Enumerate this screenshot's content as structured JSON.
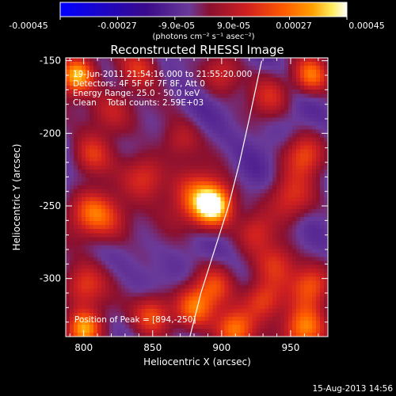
{
  "colorbar": {
    "ticks": [
      "-0.00045",
      "-0.00027",
      "-9.0e-05",
      "9.0e-05",
      "0.00027",
      "0.00045"
    ],
    "tick_values": [
      -0.00045,
      -0.00027,
      -9e-05,
      9e-05,
      0.00027,
      0.00045
    ],
    "range": [
      -0.00045,
      0.00045
    ],
    "unit_label": "(photons cm⁻² s⁻¹ asec⁻²)",
    "colors": [
      "#0000ff",
      "#3a0a8a",
      "#6a3a9a",
      "#8a1030",
      "#d02020",
      "#ff5a00",
      "#ffa000",
      "#ffee60",
      "#ffffff"
    ]
  },
  "chart_data": {
    "type": "heatmap",
    "title": "Reconstructed RHESSI Image",
    "xlabel": "Heliocentric X (arcsec)",
    "ylabel": "Heliocentric Y (arcsec)",
    "xlim": [
      787,
      977
    ],
    "ylim": [
      -340,
      -148
    ],
    "xticks": [
      800,
      850,
      900,
      950
    ],
    "yticks": [
      -150,
      -200,
      -250,
      -300
    ],
    "xtick_labels": [
      "800",
      "850",
      "900",
      "950"
    ],
    "ytick_labels": [
      "-150",
      "-200",
      "-250",
      "-300"
    ],
    "annotations": [
      "19-Jun-2011 21:54:16.000 to 21:55:20.000",
      "Detectors: 4F 5F 6F 7F 8F, Att 0",
      "Energy Range: 25.0 - 50.0 keV",
      "Clean    Total counts: 2.59E+03"
    ],
    "peak_label": "Position of Peak = [894,-250]",
    "peak": {
      "x": 894,
      "y": -250
    },
    "limb_curve": [
      [
        877,
        -340
      ],
      [
        885,
        -310
      ],
      [
        895,
        -280
      ],
      [
        905,
        -250
      ],
      [
        913,
        -220
      ],
      [
        920,
        -190
      ],
      [
        929,
        -150
      ]
    ],
    "sources": [
      {
        "x": 894,
        "y": -250,
        "amp": 0.00048,
        "sigma": 10
      },
      {
        "x": 880,
        "y": -245,
        "amp": 0.00025,
        "sigma": 14
      },
      {
        "x": 795,
        "y": -160,
        "amp": 0.00042,
        "sigma": 9
      },
      {
        "x": 805,
        "y": -215,
        "amp": 0.00022,
        "sigma": 10
      },
      {
        "x": 820,
        "y": -185,
        "amp": 0.0002,
        "sigma": 12
      },
      {
        "x": 840,
        "y": -155,
        "amp": 0.00022,
        "sigma": 10
      },
      {
        "x": 845,
        "y": -230,
        "amp": 0.00024,
        "sigma": 11
      },
      {
        "x": 805,
        "y": -255,
        "amp": 0.00026,
        "sigma": 11
      },
      {
        "x": 820,
        "y": -260,
        "amp": 0.00018,
        "sigma": 12
      },
      {
        "x": 800,
        "y": -305,
        "amp": 0.00025,
        "sigma": 11
      },
      {
        "x": 800,
        "y": -335,
        "amp": 0.0004,
        "sigma": 9
      },
      {
        "x": 850,
        "y": -325,
        "amp": 0.0003,
        "sigma": 10
      },
      {
        "x": 880,
        "y": -320,
        "amp": 0.0003,
        "sigma": 10
      },
      {
        "x": 895,
        "y": -305,
        "amp": 0.00022,
        "sigma": 10
      },
      {
        "x": 910,
        "y": -335,
        "amp": 0.00036,
        "sigma": 10
      },
      {
        "x": 930,
        "y": -315,
        "amp": 0.00028,
        "sigma": 10
      },
      {
        "x": 940,
        "y": -290,
        "amp": 0.00022,
        "sigma": 11
      },
      {
        "x": 960,
        "y": -335,
        "amp": 0.00036,
        "sigma": 11
      },
      {
        "x": 965,
        "y": -305,
        "amp": 0.00026,
        "sigma": 10
      },
      {
        "x": 950,
        "y": -245,
        "amp": 0.00022,
        "sigma": 12
      },
      {
        "x": 960,
        "y": -215,
        "amp": 0.00024,
        "sigma": 10
      },
      {
        "x": 965,
        "y": -160,
        "amp": 0.00034,
        "sigma": 9
      },
      {
        "x": 935,
        "y": -175,
        "amp": 0.00018,
        "sigma": 10
      },
      {
        "x": 900,
        "y": -160,
        "amp": 0.0002,
        "sigma": 10
      },
      {
        "x": 870,
        "y": -205,
        "amp": 0.00016,
        "sigma": 10
      },
      {
        "x": 925,
        "y": -268,
        "amp": 0.00016,
        "sigma": 9
      }
    ]
  },
  "footer": {
    "timestamp": "15-Aug-2013 14:56"
  }
}
